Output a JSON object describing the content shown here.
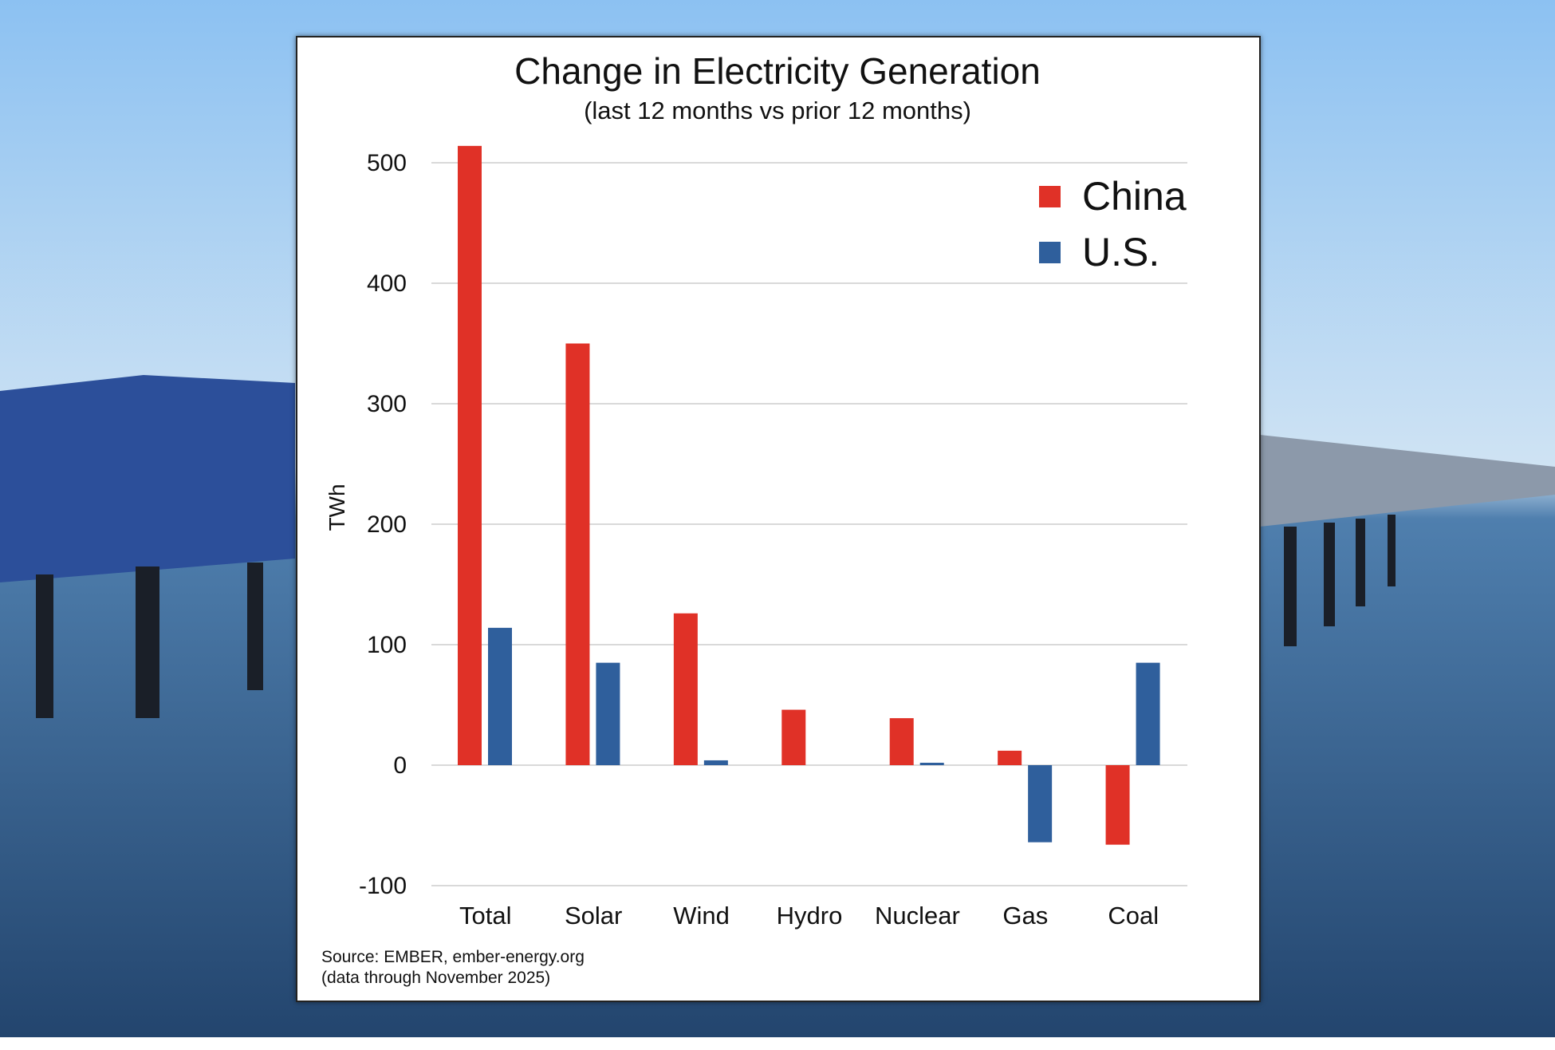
{
  "chart_data": {
    "type": "bar",
    "title": "Change in Electricity Generation",
    "subtitle": "(last 12 months vs prior 12 months)",
    "ylabel": "TWh",
    "xlabel": "",
    "ylim": [
      -100,
      500
    ],
    "yticks": [
      500,
      400,
      300,
      200,
      100,
      0,
      -100
    ],
    "grid": true,
    "legend_position": "top-right",
    "categories": [
      "Total",
      "Solar",
      "Wind",
      "Hydro",
      "Nuclear",
      "Gas",
      "Coal"
    ],
    "series": [
      {
        "name": "China",
        "color": "#e03127",
        "values": [
          514,
          350,
          126,
          46,
          39,
          12,
          -66
        ]
      },
      {
        "name": "U.S.",
        "color": "#2f5f9c",
        "values": [
          114,
          85,
          4,
          0,
          2,
          -64,
          85
        ]
      }
    ],
    "source_line1": "Source: EMBER, ember-energy.org",
    "source_line2": "(data through November 2025)"
  },
  "background": {
    "description_colors": [
      "#8fc3f0",
      "#3a6fa8"
    ]
  }
}
